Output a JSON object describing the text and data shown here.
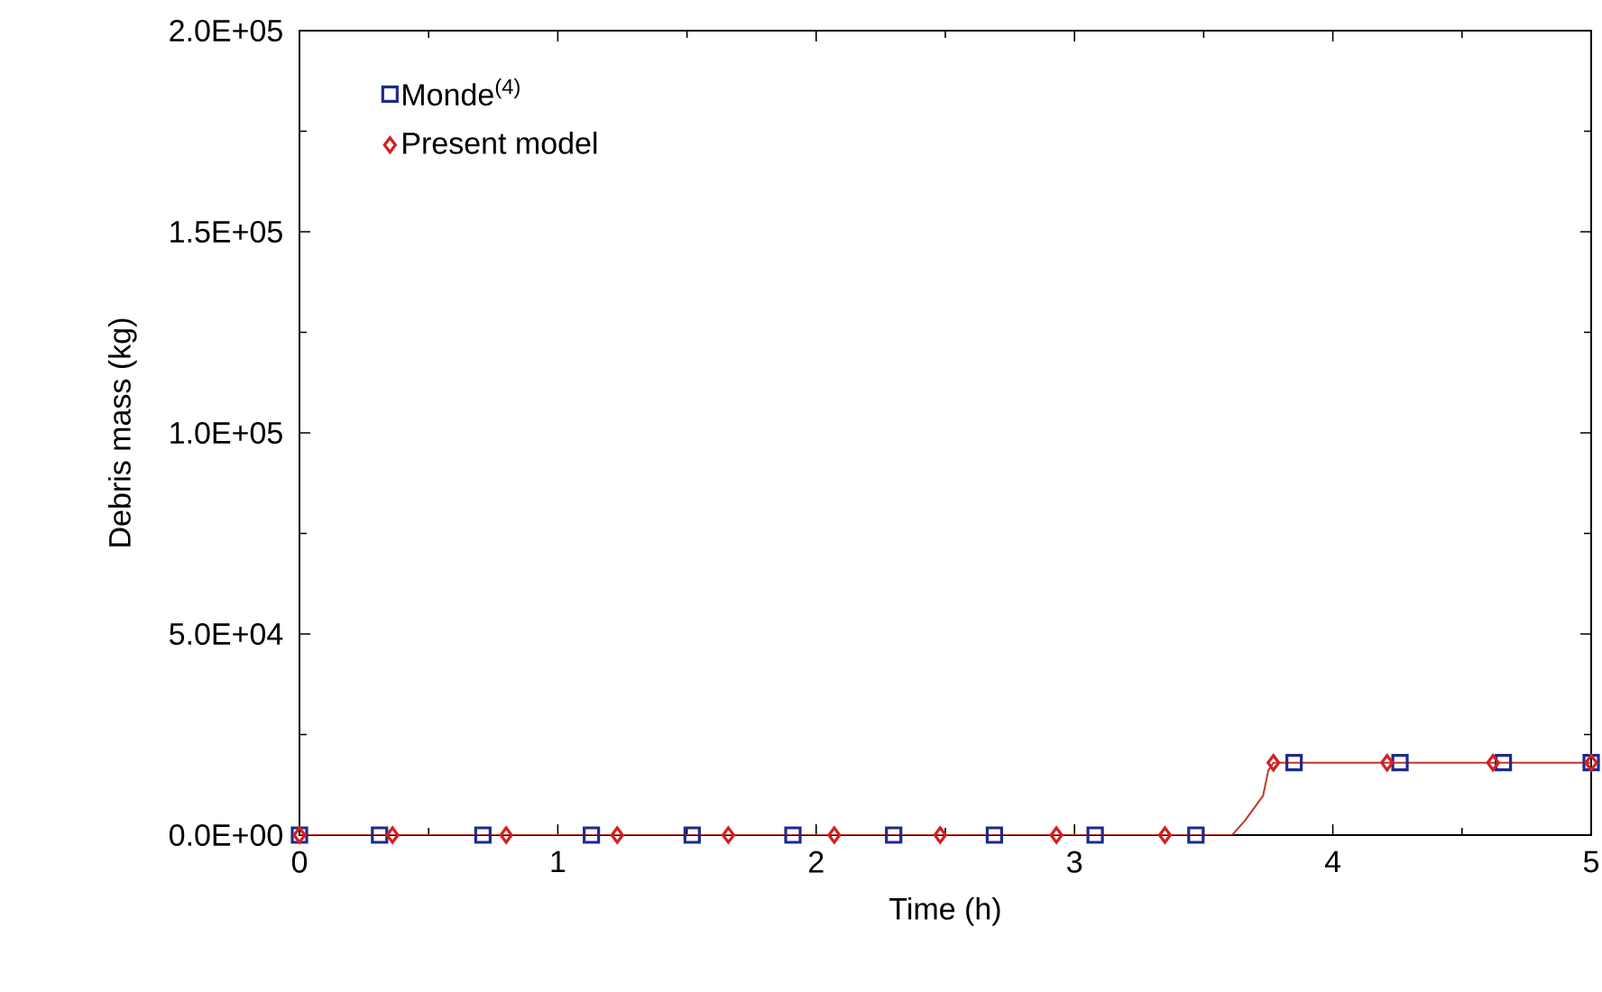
{
  "chart_data": {
    "type": "scatter",
    "xlabel": "Time (h)",
    "ylabel": "Debris mass (kg)",
    "xlim": [
      0,
      5
    ],
    "ylim": [
      0,
      200000
    ],
    "xticks": [
      0,
      1,
      2,
      3,
      4,
      5
    ],
    "yticks": [
      {
        "value": 0,
        "label": "0.0E+00"
      },
      {
        "value": 50000,
        "label": "5.0E+04"
      },
      {
        "value": 100000,
        "label": "1.0E+05"
      },
      {
        "value": 150000,
        "label": "1.5E+05"
      },
      {
        "value": 200000,
        "label": "2.0E+05"
      }
    ],
    "grid": false,
    "legend": "top left",
    "series": [
      {
        "name": "Monde$^{(4)}$",
        "color": "#1f2a8c",
        "marker": "square",
        "x": [
          0,
          0.31,
          0.71,
          1.13,
          1.52,
          1.91,
          2.3,
          2.69,
          3.08,
          3.47,
          3.85,
          4.26,
          4.66,
          5.0
        ],
        "values": [
          0,
          0,
          0,
          0,
          0,
          0,
          0,
          0,
          0,
          0,
          18000,
          18000,
          18000,
          18000
        ]
      },
      {
        "name": "Present model",
        "color": "#d42020",
        "marker": "diamond",
        "x": [
          0,
          0.36,
          0.8,
          1.23,
          1.66,
          2.07,
          2.48,
          2.93,
          3.35,
          3.77,
          4.21,
          4.62,
          5.0
        ],
        "values": [
          0,
          0,
          0,
          0,
          0,
          0,
          0,
          0,
          0,
          18000,
          18000,
          18000,
          18000
        ]
      },
      {
        "type": "line",
        "color": "#c0392b",
        "marker": "none",
        "line_style": "solid",
        "x": [
          0,
          3.5,
          3.61,
          3.66,
          3.73,
          3.75,
          3.77,
          5.0
        ],
        "values": [
          0,
          0,
          0,
          3600,
          9800,
          16000,
          18000,
          18000
        ]
      }
    ]
  }
}
